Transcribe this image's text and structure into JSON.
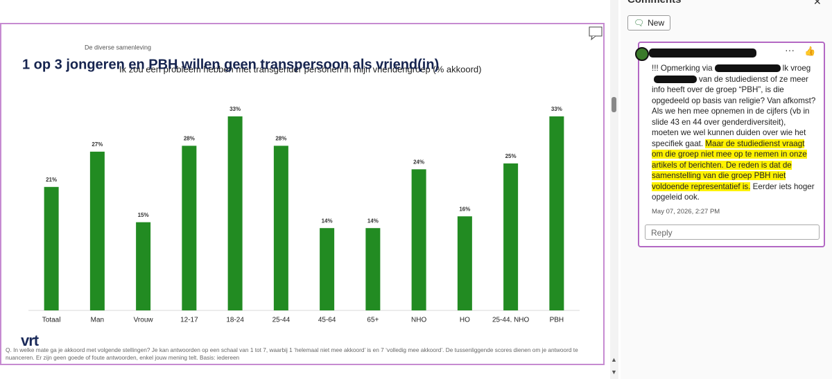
{
  "chart_data": {
    "type": "bar",
    "kicker": "De diverse samenleving",
    "title": "1 op 3 jongeren en PBH willen geen transpersoon als vriend(in)",
    "subtitle": "Ik zou een probleem hebben met transgender personen in mijn vriendengroep  (% akkoord)",
    "categories": [
      "Totaal",
      "Man",
      "Vrouw",
      "12-17",
      "18-24",
      "25-44",
      "45-64",
      "65+",
      "NHO",
      "HO",
      "25-44, NHO",
      "PBH"
    ],
    "values": [
      21,
      27,
      15,
      28,
      33,
      28,
      14,
      14,
      24,
      16,
      25,
      33
    ],
    "value_labels": [
      "21%",
      "27%",
      "15%",
      "28%",
      "33%",
      "28%",
      "14%",
      "14%",
      "24%",
      "16%",
      "25%",
      "33%"
    ],
    "color": "#228b22",
    "ylim": [
      0,
      35
    ],
    "footnote": "Q. In welke mate ga je akkoord met volgende stellingen? Je kan antwoorden op een schaal van 1 tot 7, waarbij 1 ‘helemaal niet mee akkoord’ is en 7 ‘volledig mee akkoord’. De tussenliggende scores dienen om je antwoord te nuanceren. Er zijn geen goede of foute antwoorden, enkel jouw mening telt.  Basis: iedereen",
    "logo": "vrt"
  },
  "comments_panel": {
    "title": "Comments",
    "new_button": "New",
    "comment": {
      "lines": [
        [
          {
            "text": "!!! Opmerking via"
          },
          {
            "redacted": true
          },
          {
            "text": "lk vroeg"
          }
        ],
        [
          {
            "redacted": true
          },
          {
            "text": "van de studiedienst of ze meer"
          }
        ],
        [
          {
            "text": "info heeft over de groep “PBH”, is die"
          }
        ],
        [
          {
            "text": "opgedeeld op basis van religie? Van afkomst?"
          }
        ],
        [
          {
            "text": "Als we hen mee opnemen in de cijfers (vb in"
          }
        ],
        [
          {
            "text": "slide 43 en 44 over genderdiversiteit),"
          }
        ],
        [
          {
            "text": "moeten we wel kunnen duiden over wie het"
          }
        ],
        [
          {
            "text": "specifiek gaat. "
          },
          {
            "text": "Maar de studiedienst vraagt",
            "highlight": true
          }
        ],
        [
          {
            "text": "om die groep niet mee op te nemen in onze",
            "highlight": true
          }
        ],
        [
          {
            "text": "artikels of berichten. De reden is dat de",
            "highlight": true
          }
        ],
        [
          {
            "text": "samenstelling van die groep PBH niet",
            "highlight": true
          }
        ],
        [
          {
            "text": "voldoende representatief is.",
            "highlight": true
          },
          {
            "text": " Eerder iets hoger"
          }
        ],
        [
          {
            "text": "opgeleid ook."
          }
        ]
      ],
      "date": "May 07, 2026, 2:27 PM",
      "reply_placeholder": "Reply"
    }
  }
}
